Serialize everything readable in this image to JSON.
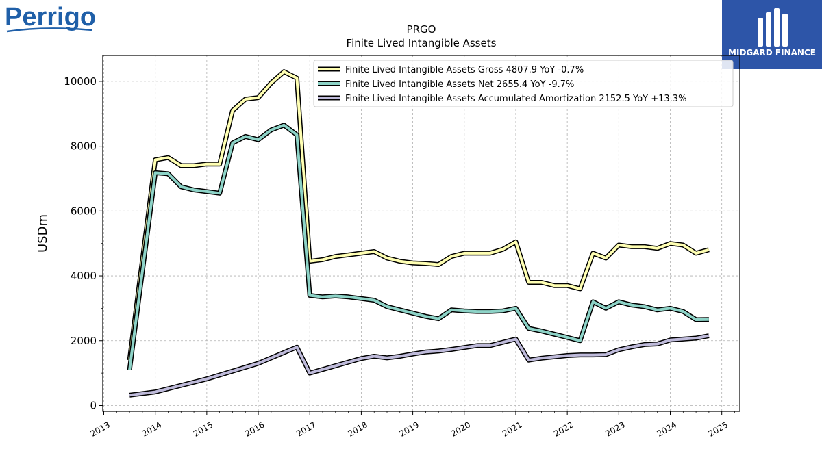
{
  "brand": {
    "left_logo_text": "Perrigo",
    "right_logo_text": "MIDGARD FINANCE",
    "right_logo_color": "#2d55a8",
    "left_logo_color": "#1f5fa8"
  },
  "chart_data": {
    "type": "line",
    "title": "PRGO",
    "subtitle": "Finite Lived Intangible Assets",
    "ylabel": "USDm",
    "xlabel": "",
    "x_range": [
      2012.98,
      2025.35
    ],
    "ylim": [
      -180,
      10800
    ],
    "x_ticks": [
      "2013",
      "2014",
      "2015",
      "2016",
      "2017",
      "2018",
      "2019",
      "2020",
      "2021",
      "2022",
      "2023",
      "2024",
      "2025"
    ],
    "y_ticks": [
      "0",
      "2000",
      "4000",
      "6000",
      "8000",
      "10000"
    ],
    "grid": true,
    "legend_position": "top-right",
    "x": [
      2013.5,
      2013.75,
      2014.0,
      2014.25,
      2014.5,
      2014.75,
      2015.0,
      2015.25,
      2015.5,
      2015.75,
      2016.0,
      2016.25,
      2016.5,
      2016.75,
      2017.0,
      2017.25,
      2017.5,
      2017.75,
      2018.0,
      2018.25,
      2018.5,
      2018.75,
      2019.0,
      2019.25,
      2019.5,
      2019.75,
      2020.0,
      2020.25,
      2020.5,
      2020.75,
      2021.0,
      2021.25,
      2021.5,
      2021.75,
      2022.0,
      2022.25,
      2022.5,
      2022.75,
      2023.0,
      2023.25,
      2023.5,
      2023.75,
      2024.0,
      2024.25,
      2024.5,
      2024.75
    ],
    "series": [
      {
        "name": "Finite Lived Intangible Assets Gross",
        "legend": "Finite Lived Intangible Assets Gross  4807.9 YoY -0.7%",
        "color": "#ffffb3",
        "values": [
          1400,
          null,
          7580,
          7650,
          7400,
          7400,
          7450,
          7450,
          9100,
          9450,
          9500,
          9950,
          10300,
          10100,
          4450,
          4500,
          4600,
          4650,
          4700,
          4750,
          4550,
          4450,
          4400,
          4380,
          4350,
          4600,
          4700,
          4700,
          4700,
          4820,
          5050,
          3800,
          3800,
          3700,
          3700,
          3600,
          4700,
          4550,
          4950,
          4900,
          4900,
          4850,
          5000,
          4950,
          4700,
          4808
        ]
      },
      {
        "name": "Finite Lived Intangible Assets Net",
        "legend": "Finite Lived Intangible Assets Net  2655.4 YoY -9.7%",
        "color": "#8dd3c7",
        "values": [
          1100,
          null,
          7180,
          7150,
          6750,
          6650,
          6600,
          6550,
          8100,
          8300,
          8200,
          8500,
          8650,
          8350,
          3400,
          3350,
          3380,
          3350,
          3300,
          3250,
          3050,
          2950,
          2850,
          2750,
          2680,
          2950,
          2920,
          2900,
          2900,
          2920,
          3000,
          2380,
          2300,
          2200,
          2100,
          2000,
          3200,
          3000,
          3200,
          3100,
          3050,
          2950,
          3000,
          2900,
          2650,
          2655
        ]
      },
      {
        "name": "Finite Lived Intangible Assets Accumulated Amortization",
        "legend": "Finite Lived Intangible Assets Accumulated Amortization  2152.5 YoY +13.3%",
        "color": "#bebada",
        "values": [
          320,
          null,
          420,
          null,
          null,
          null,
          820,
          null,
          null,
          null,
          1300,
          null,
          null,
          1800,
          1000,
          null,
          null,
          null,
          1450,
          1520,
          1470,
          1520,
          1590,
          1650,
          1680,
          1730,
          1790,
          1850,
          1850,
          1950,
          2050,
          1400,
          1460,
          1500,
          1540,
          1560,
          1560,
          1570,
          1720,
          1810,
          1880,
          1900,
          2020,
          2050,
          2080,
          2152
        ]
      }
    ]
  }
}
